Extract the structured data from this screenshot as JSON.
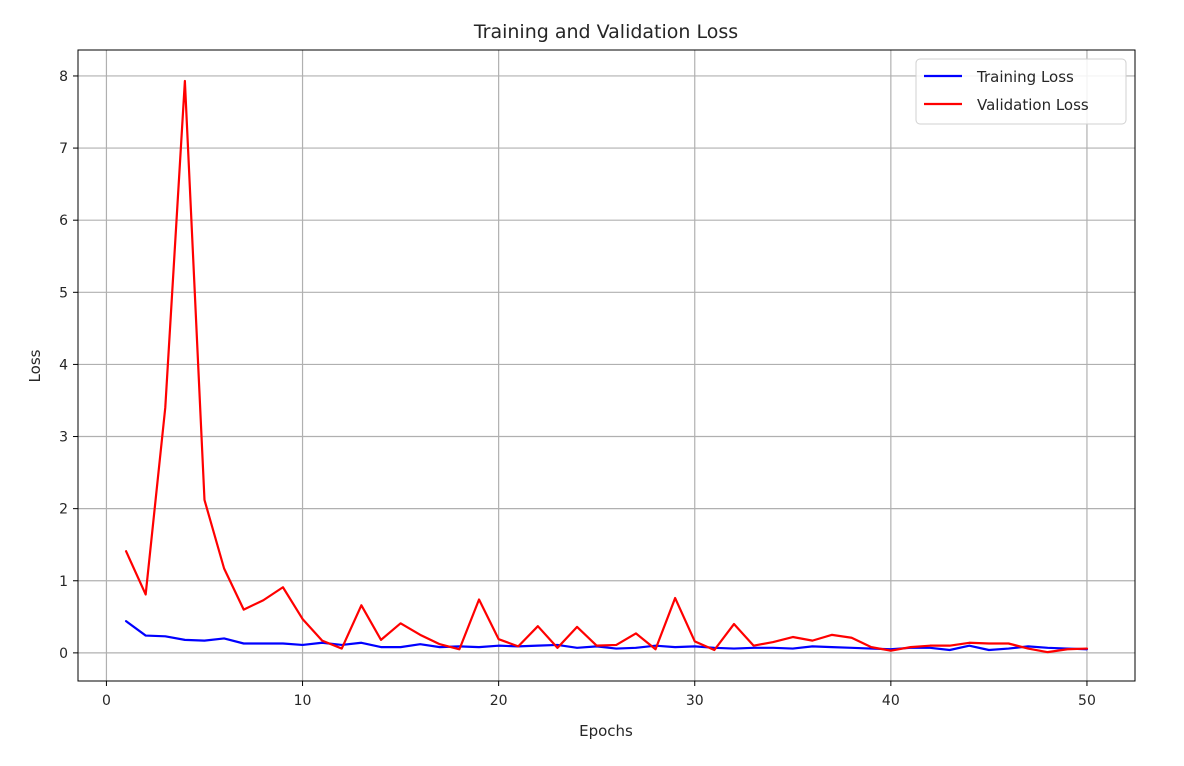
{
  "chart_data": {
    "type": "line",
    "title": "Training and Validation Loss",
    "xlabel": "Epochs",
    "ylabel": "Loss",
    "xlim": [
      -1.45,
      52.45
    ],
    "ylim": [
      -0.39,
      8.36
    ],
    "xticks": [
      0,
      10,
      20,
      30,
      40,
      50
    ],
    "yticks": [
      0,
      1,
      2,
      3,
      4,
      5,
      6,
      7,
      8
    ],
    "grid": true,
    "legend": "top-right",
    "x": [
      1,
      2,
      3,
      4,
      5,
      6,
      7,
      8,
      9,
      10,
      11,
      12,
      13,
      14,
      15,
      16,
      17,
      18,
      19,
      20,
      21,
      22,
      23,
      24,
      25,
      26,
      27,
      28,
      29,
      30,
      31,
      32,
      33,
      34,
      35,
      36,
      37,
      38,
      39,
      40,
      41,
      42,
      43,
      44,
      45,
      46,
      47,
      48,
      49,
      50
    ],
    "series": [
      {
        "name": "Training Loss",
        "color": "#0000ff",
        "values": [
          0.44,
          0.24,
          0.23,
          0.18,
          0.17,
          0.2,
          0.13,
          0.13,
          0.13,
          0.11,
          0.14,
          0.11,
          0.14,
          0.08,
          0.08,
          0.12,
          0.08,
          0.09,
          0.08,
          0.1,
          0.09,
          0.1,
          0.11,
          0.07,
          0.09,
          0.06,
          0.07,
          0.1,
          0.08,
          0.09,
          0.07,
          0.06,
          0.07,
          0.07,
          0.06,
          0.09,
          0.08,
          0.07,
          0.06,
          0.05,
          0.07,
          0.07,
          0.04,
          0.1,
          0.04,
          0.06,
          0.09,
          0.07,
          0.06,
          0.05
        ]
      },
      {
        "name": "Validation Loss",
        "color": "#ff0000",
        "values": [
          1.41,
          0.81,
          3.4,
          7.93,
          2.12,
          1.17,
          0.6,
          0.73,
          0.91,
          0.47,
          0.17,
          0.06,
          0.66,
          0.18,
          0.41,
          0.25,
          0.12,
          0.05,
          0.74,
          0.19,
          0.09,
          0.37,
          0.07,
          0.36,
          0.1,
          0.11,
          0.27,
          0.05,
          0.76,
          0.16,
          0.04,
          0.4,
          0.1,
          0.15,
          0.22,
          0.17,
          0.25,
          0.21,
          0.08,
          0.03,
          0.08,
          0.1,
          0.1,
          0.14,
          0.13,
          0.13,
          0.06,
          0.01,
          0.05,
          0.06
        ]
      }
    ]
  }
}
